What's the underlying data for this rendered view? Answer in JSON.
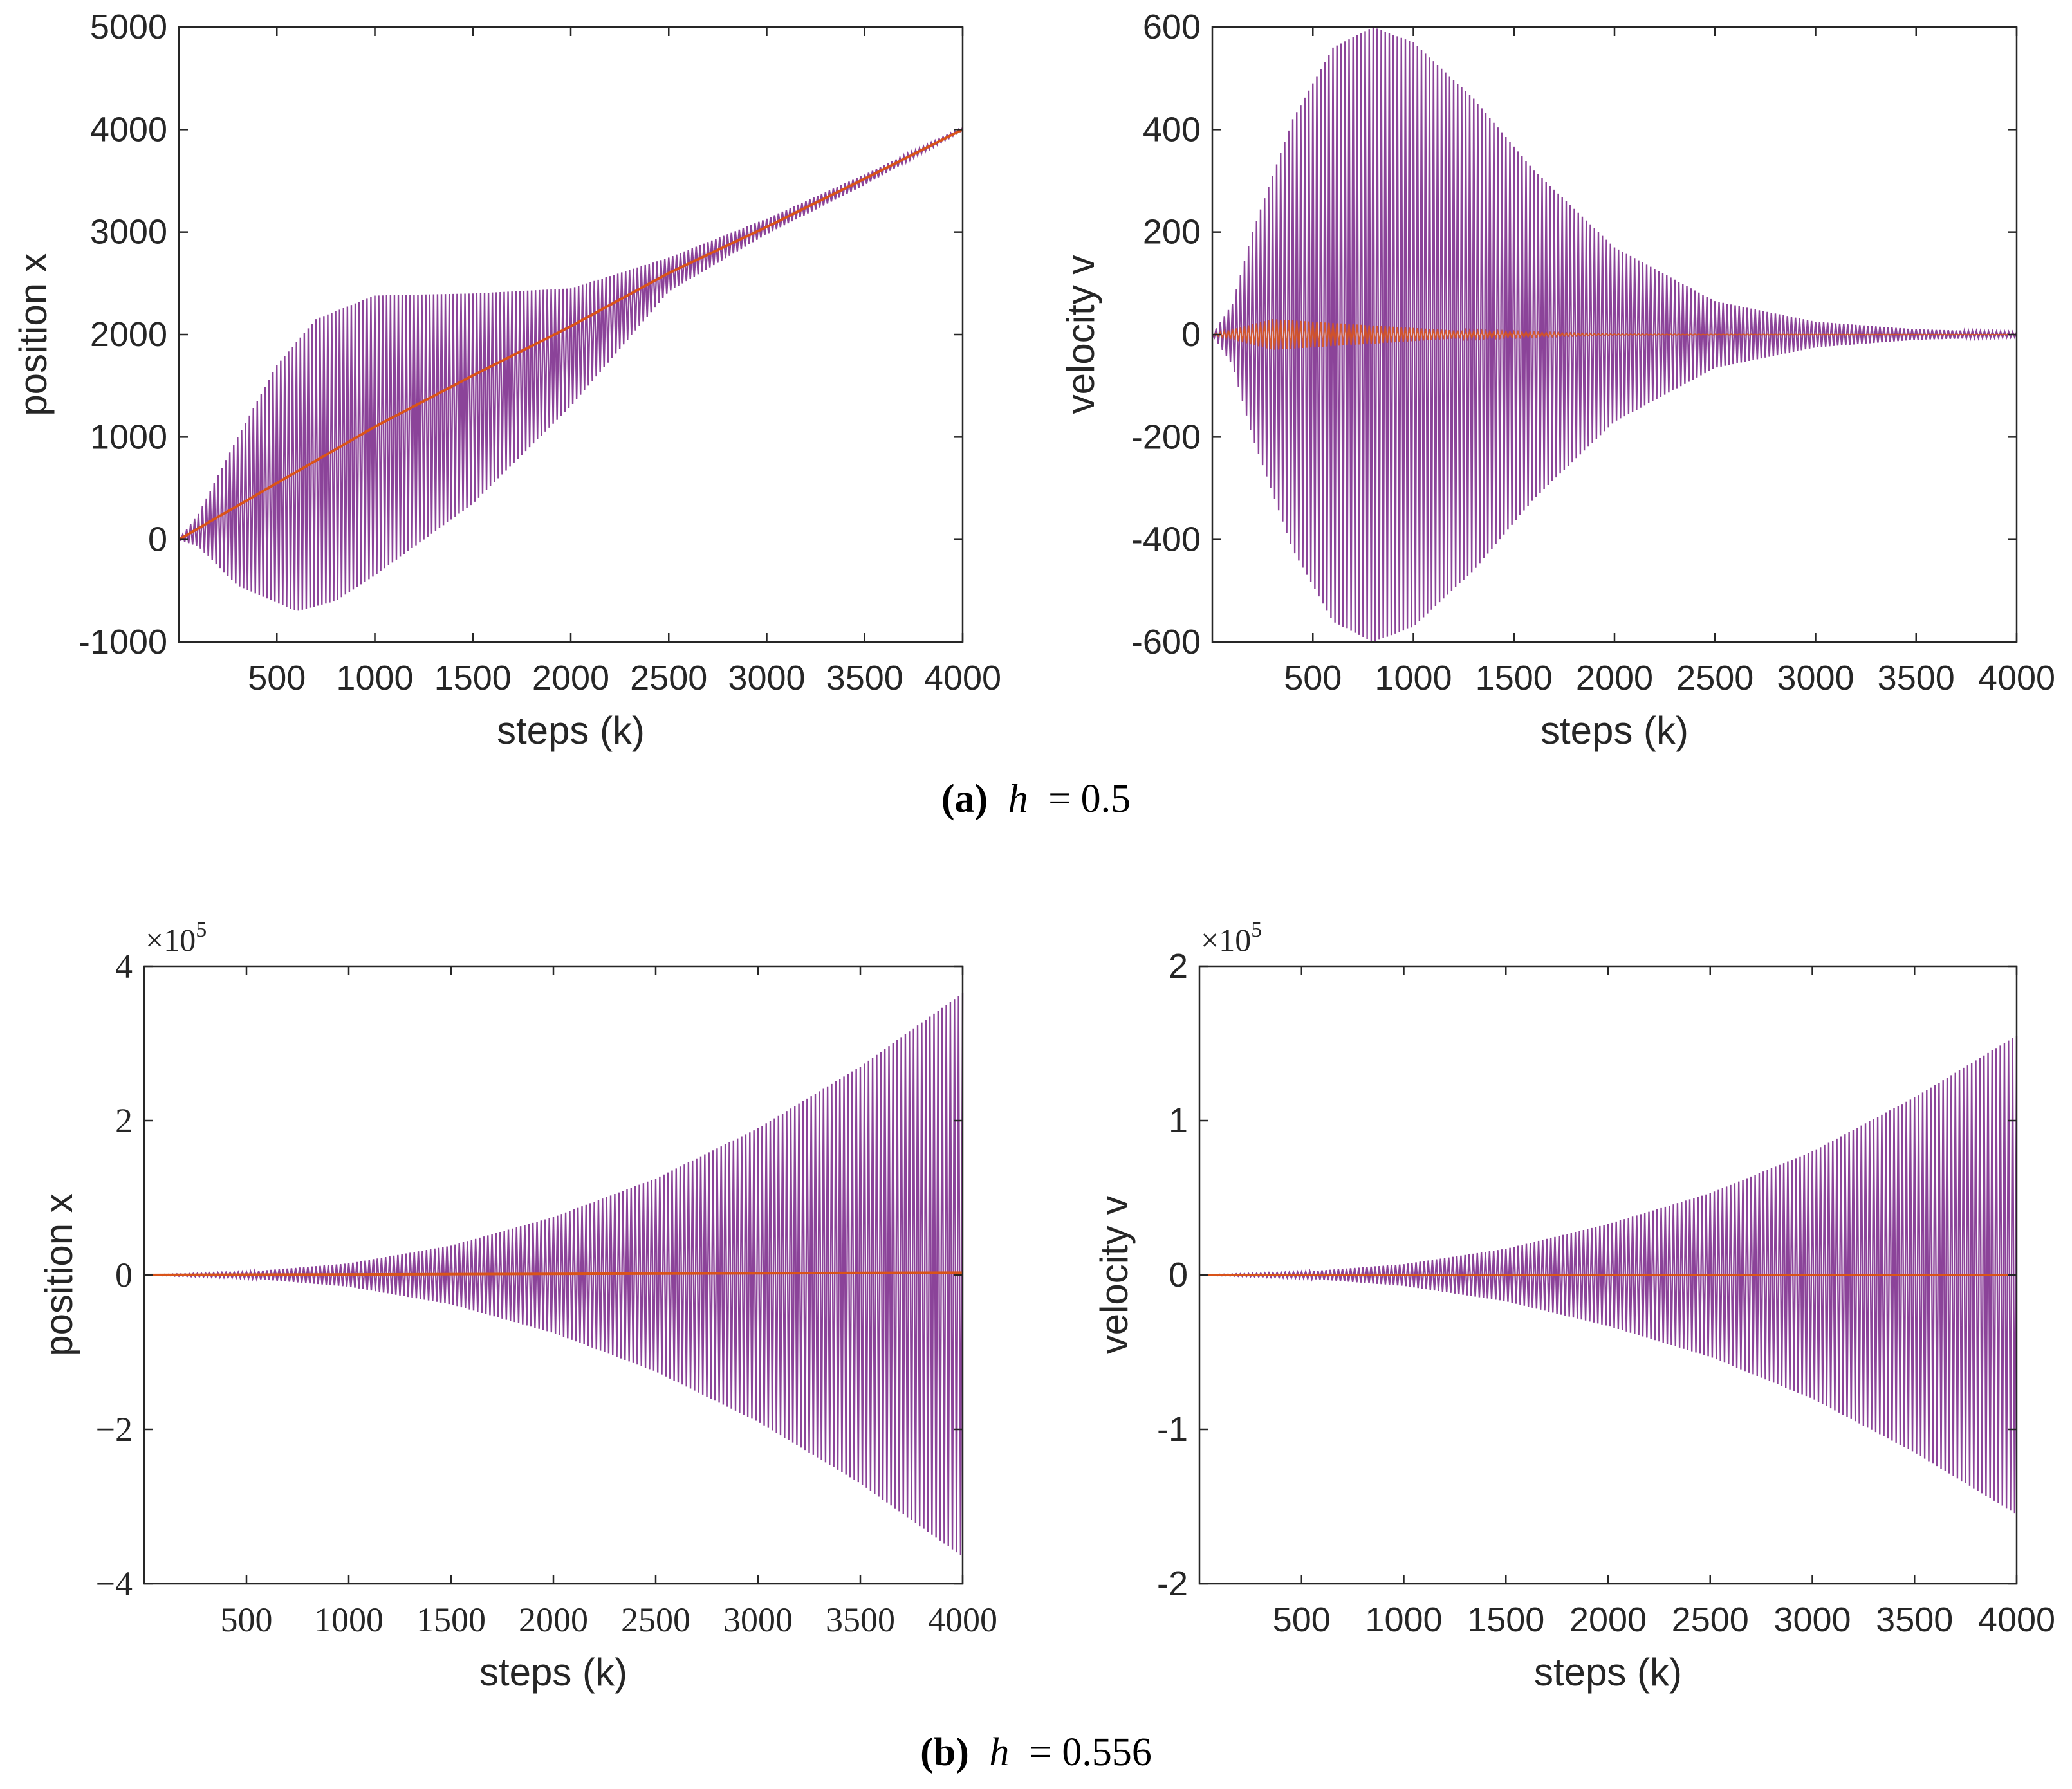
{
  "captions": {
    "a": {
      "label": "(a)",
      "math": "h",
      "eq": "= 0.5"
    },
    "b": {
      "label": "(b)",
      "math": "h",
      "eq": "= 0.556"
    }
  },
  "colors": {
    "oscillation": "#7E2F8E",
    "trend": "#D95319",
    "axes": "#262626"
  },
  "chart_data": [
    {
      "id": "a-position",
      "type": "line",
      "xlabel": "steps (k)",
      "ylabel": "position x",
      "xlim": [
        0,
        4000
      ],
      "ylim": [
        -1000,
        5000
      ],
      "xticks": [
        500,
        1000,
        1500,
        2000,
        2500,
        3000,
        3500,
        4000
      ],
      "yticks": [
        -1000,
        0,
        1000,
        2000,
        3000,
        4000,
        5000
      ],
      "tick_font": "sans",
      "multiplier": null,
      "series": [
        {
          "name": "oscillating",
          "kind": "envelope",
          "center": "trend",
          "upper": [
            [
              0,
              0
            ],
            [
              100,
              250
            ],
            [
              300,
              1000
            ],
            [
              500,
              1700
            ],
            [
              700,
              2150
            ],
            [
              1000,
              2380
            ],
            [
              1500,
              2400
            ],
            [
              2000,
              2450
            ],
            [
              2500,
              2750
            ],
            [
              3000,
              3130
            ],
            [
              3500,
              3560
            ],
            [
              4000,
              4020
            ]
          ],
          "lower": [
            [
              0,
              0
            ],
            [
              100,
              -70
            ],
            [
              300,
              -450
            ],
            [
              600,
              -700
            ],
            [
              800,
              -600
            ],
            [
              1000,
              -350
            ],
            [
              1500,
              350
            ],
            [
              2000,
              1300
            ],
            [
              2500,
              2420
            ],
            [
              3000,
              2980
            ],
            [
              3500,
              3460
            ],
            [
              4000,
              3990
            ]
          ],
          "cycles": 200
        },
        {
          "name": "trend",
          "kind": "line",
          "points": [
            [
              0,
              0
            ],
            [
              500,
              550
            ],
            [
              1000,
              1100
            ],
            [
              1500,
              1600
            ],
            [
              2000,
              2080
            ],
            [
              2500,
              2600
            ],
            [
              3000,
              3050
            ],
            [
              3500,
              3520
            ],
            [
              4000,
              4000
            ]
          ]
        }
      ]
    },
    {
      "id": "a-velocity",
      "type": "line",
      "xlabel": "steps (k)",
      "ylabel": "velocity v",
      "xlim": [
        0,
        4000
      ],
      "ylim": [
        -600,
        600
      ],
      "xticks": [
        500,
        1000,
        1500,
        2000,
        2500,
        3000,
        3500,
        4000
      ],
      "yticks": [
        -600,
        -400,
        -200,
        0,
        200,
        400,
        600
      ],
      "tick_font": "sans",
      "multiplier": null,
      "series": [
        {
          "name": "oscillating",
          "kind": "envelope",
          "center": "zero",
          "upper": [
            [
              0,
              0
            ],
            [
              100,
              60
            ],
            [
              200,
              200
            ],
            [
              400,
              420
            ],
            [
              600,
              560
            ],
            [
              800,
              600
            ],
            [
              1000,
              570
            ],
            [
              1300,
              460
            ],
            [
              1600,
              320
            ],
            [
              2000,
              170
            ],
            [
              2500,
              65
            ],
            [
              3000,
              25
            ],
            [
              3500,
              10
            ],
            [
              4000,
              5
            ]
          ],
          "lower": [
            [
              0,
              0
            ],
            [
              100,
              -60
            ],
            [
              200,
              -200
            ],
            [
              400,
              -420
            ],
            [
              600,
              -560
            ],
            [
              800,
              -600
            ],
            [
              1000,
              -570
            ],
            [
              1300,
              -460
            ],
            [
              1600,
              -320
            ],
            [
              2000,
              -170
            ],
            [
              2500,
              -65
            ],
            [
              3000,
              -25
            ],
            [
              3500,
              -10
            ],
            [
              4000,
              -5
            ]
          ],
          "cycles": 200
        },
        {
          "name": "trend",
          "kind": "envelope",
          "center": "zero",
          "upper": [
            [
              0,
              0
            ],
            [
              300,
              30
            ],
            [
              700,
              20
            ],
            [
              1200,
              8
            ],
            [
              2000,
              1
            ],
            [
              4000,
              0
            ]
          ],
          "lower": [
            [
              0,
              0
            ],
            [
              300,
              -30
            ],
            [
              700,
              -20
            ],
            [
              1200,
              -8
            ],
            [
              2000,
              -1
            ],
            [
              4000,
              0
            ]
          ],
          "cycles": 200
        }
      ]
    },
    {
      "id": "b-position",
      "type": "line",
      "xlabel": "steps (k)",
      "ylabel": "position x",
      "xlim": [
        0,
        4000
      ],
      "ylim": [
        -4,
        4
      ],
      "xticks": [
        500,
        1000,
        1500,
        2000,
        2500,
        3000,
        3500,
        4000
      ],
      "yticks": [
        -4,
        -2,
        0,
        2,
        4
      ],
      "ytick_labels": [
        "−4",
        "−2",
        "0",
        "2",
        "4"
      ],
      "tick_font": "serif",
      "multiplier": {
        "base": "×10",
        "exp": "5"
      },
      "series": [
        {
          "name": "oscillating",
          "kind": "envelope",
          "center": "zero",
          "upper": [
            [
              0,
              0
            ],
            [
              500,
              0.04
            ],
            [
              1000,
              0.15
            ],
            [
              1500,
              0.38
            ],
            [
              2000,
              0.75
            ],
            [
              2500,
              1.25
            ],
            [
              3000,
              1.9
            ],
            [
              3500,
              2.7
            ],
            [
              4000,
              3.65
            ]
          ],
          "lower": [
            [
              0,
              0
            ],
            [
              500,
              -0.04
            ],
            [
              1000,
              -0.15
            ],
            [
              1500,
              -0.38
            ],
            [
              2000,
              -0.75
            ],
            [
              2500,
              -1.25
            ],
            [
              3000,
              -1.9
            ],
            [
              3500,
              -2.7
            ],
            [
              4000,
              -3.65
            ]
          ],
          "cycles": 200
        },
        {
          "name": "trend",
          "kind": "line",
          "points": [
            [
              0,
              0
            ],
            [
              4000,
              0.03
            ]
          ]
        }
      ]
    },
    {
      "id": "b-velocity",
      "type": "line",
      "xlabel": "steps (k)",
      "ylabel": "velocity v",
      "xlim": [
        0,
        4000
      ],
      "ylim": [
        -2,
        2
      ],
      "xticks": [
        500,
        1000,
        1500,
        2000,
        2500,
        3000,
        3500,
        4000
      ],
      "yticks": [
        -2,
        -1,
        0,
        1,
        2
      ],
      "ytick_labels": [
        "-2",
        "-1",
        "0",
        "1",
        "2"
      ],
      "tick_font": "sans",
      "multiplier": {
        "base": "×10",
        "exp": "5"
      },
      "series": [
        {
          "name": "oscillating",
          "kind": "envelope",
          "center": "zero",
          "upper": [
            [
              0,
              0
            ],
            [
              500,
              0.02
            ],
            [
              1000,
              0.07
            ],
            [
              1500,
              0.17
            ],
            [
              2000,
              0.33
            ],
            [
              2500,
              0.53
            ],
            [
              3000,
              0.8
            ],
            [
              3500,
              1.15
            ],
            [
              4000,
              1.55
            ]
          ],
          "lower": [
            [
              0,
              0
            ],
            [
              500,
              -0.02
            ],
            [
              1000,
              -0.07
            ],
            [
              1500,
              -0.17
            ],
            [
              2000,
              -0.33
            ],
            [
              2500,
              -0.53
            ],
            [
              3000,
              -0.8
            ],
            [
              3500,
              -1.15
            ],
            [
              4000,
              -1.55
            ]
          ],
          "cycles": 200
        },
        {
          "name": "trend",
          "kind": "line",
          "points": [
            [
              0,
              0
            ],
            [
              4000,
              0
            ]
          ]
        }
      ]
    }
  ]
}
